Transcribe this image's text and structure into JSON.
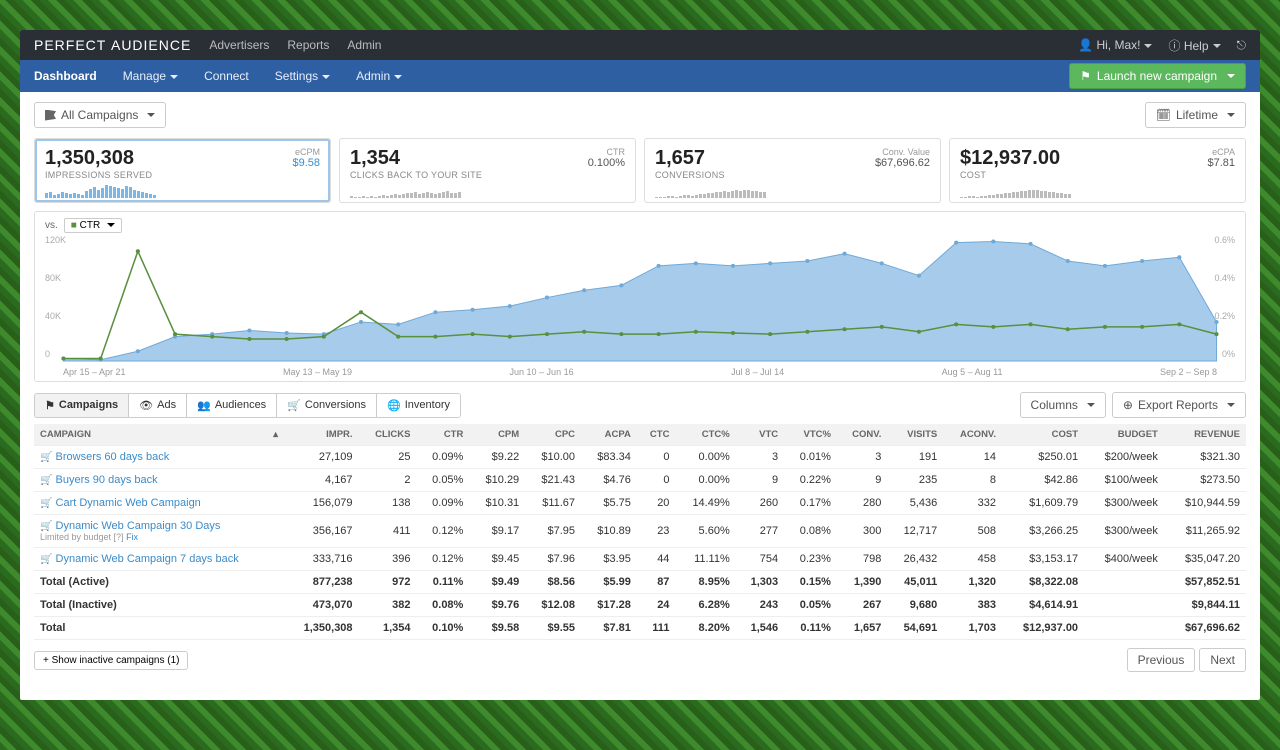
{
  "brand": {
    "a": "PERFECT",
    "b": "AUDIENCE"
  },
  "topnav": [
    "Advertisers",
    "Reports",
    "Admin"
  ],
  "user": {
    "greeting": "Hi, Max!",
    "help": "Help"
  },
  "subnav": [
    {
      "label": "Dashboard",
      "active": true
    },
    {
      "label": "Manage",
      "caret": true
    },
    {
      "label": "Connect"
    },
    {
      "label": "Settings",
      "caret": true
    },
    {
      "label": "Admin",
      "caret": true
    }
  ],
  "launch_label": "Launch new campaign",
  "filter": {
    "label": "All Campaigns"
  },
  "timerange": {
    "label": "Lifetime"
  },
  "cards": [
    {
      "big": "1,350,308",
      "sub": "IMPRESSIONS SERVED",
      "meta_label": "eCPM",
      "meta_val": "$9.58",
      "sel": true,
      "spark": [
        5,
        6,
        3,
        4,
        6,
        5,
        4,
        5,
        4,
        3,
        7,
        9,
        11,
        8,
        10,
        13,
        12,
        11,
        10,
        9,
        12,
        11,
        8,
        7,
        6,
        5,
        4,
        3
      ],
      "spark_color": "#7ab7e6"
    },
    {
      "big": "1,354",
      "sub": "CLICKS BACK TO YOUR SITE",
      "meta_label": "CTR",
      "meta_val": "0.100%",
      "plain": true,
      "spark": [
        2,
        1,
        1,
        2,
        1,
        2,
        1,
        2,
        3,
        2,
        3,
        4,
        3,
        4,
        5,
        5,
        6,
        4,
        5,
        6,
        5,
        4,
        5,
        6,
        7,
        5,
        5,
        6
      ],
      "spark_color": "#bbb"
    },
    {
      "big": "1,657",
      "sub": "CONVERSIONS",
      "meta_label": "Conv. Value",
      "meta_val": "$67,696.62",
      "plain": true,
      "spark": [
        1,
        1,
        1,
        2,
        2,
        1,
        2,
        3,
        3,
        2,
        3,
        4,
        4,
        5,
        5,
        6,
        6,
        7,
        6,
        7,
        8,
        7,
        8,
        8,
        7,
        7,
        6,
        6
      ],
      "spark_color": "#bbb"
    },
    {
      "big": "$12,937.00",
      "sub": "COST",
      "meta_label": "eCPA",
      "meta_val": "$7.81",
      "plain": true,
      "spark": [
        1,
        1,
        2,
        2,
        1,
        2,
        2,
        3,
        3,
        4,
        4,
        5,
        5,
        6,
        6,
        7,
        7,
        8,
        8,
        8,
        7,
        7,
        6,
        6,
        5,
        5,
        4,
        4
      ],
      "spark_color": "#bbb"
    }
  ],
  "vs": {
    "prefix": "vs.",
    "button": "CTR"
  },
  "chart": {
    "ylim_left": 120000,
    "yticks_left": [
      "120K",
      "80K",
      "40K",
      "0"
    ],
    "ylim_right": 0.006,
    "yticks_right": [
      "0.6%",
      "0.4%",
      "0.2%",
      "0%"
    ],
    "xlabels": [
      "Apr 15 – Apr 21",
      "May 13 – May 19",
      "Jun 10 – Jun 16",
      "Jul 8 – Jul 14",
      "Aug 5 – Aug 11",
      "Sep 2 – Sep 8"
    ],
    "area_color": "#a7cceb",
    "area_stroke": "#6fa9d8",
    "line_color": "#5a8f3e",
    "area": [
      2,
      1,
      8,
      20,
      22,
      25,
      23,
      22,
      32,
      30,
      40,
      42,
      45,
      52,
      58,
      62,
      78,
      80,
      78,
      80,
      82,
      88,
      80,
      70,
      97,
      98,
      96,
      82,
      78,
      82,
      85,
      32
    ],
    "line": [
      2,
      2,
      90,
      22,
      20,
      18,
      18,
      20,
      40,
      20,
      20,
      22,
      20,
      22,
      24,
      22,
      22,
      24,
      23,
      22,
      24,
      26,
      28,
      24,
      30,
      28,
      30,
      26,
      28,
      28,
      30,
      22
    ]
  },
  "tabs": [
    {
      "icon": "flag",
      "label": "Campaigns",
      "active": true
    },
    {
      "icon": "eye",
      "label": "Ads"
    },
    {
      "icon": "people",
      "label": "Audiences"
    },
    {
      "icon": "cart",
      "label": "Conversions"
    },
    {
      "icon": "globe",
      "label": "Inventory"
    }
  ],
  "columns_btn": "Columns",
  "export_btn": "Export Reports",
  "table": {
    "headers": [
      "CAMPAIGN",
      "IMPR.",
      "CLICKS",
      "CTR",
      "CPM",
      "CPC",
      "ACPA",
      "CTC",
      "CTC%",
      "VTC",
      "VTC%",
      "CONV.",
      "VISITS",
      "ACONV.",
      "COST",
      "BUDGET",
      "REVENUE"
    ],
    "rows": [
      {
        "name": "Browsers 60 days back",
        "c": [
          "27,109",
          "25",
          "0.09%",
          "$9.22",
          "$10.00",
          "$83.34",
          "0",
          "0.00%",
          "3",
          "0.01%",
          "3",
          "191",
          "14",
          "$250.01",
          "$200/week",
          "$321.30"
        ]
      },
      {
        "name": "Buyers 90 days back",
        "c": [
          "4,167",
          "2",
          "0.05%",
          "$10.29",
          "$21.43",
          "$4.76",
          "0",
          "0.00%",
          "9",
          "0.22%",
          "9",
          "235",
          "8",
          "$42.86",
          "$100/week",
          "$273.50"
        ]
      },
      {
        "name": "Cart Dynamic Web Campaign",
        "c": [
          "156,079",
          "138",
          "0.09%",
          "$10.31",
          "$11.67",
          "$5.75",
          "20",
          "14.49%",
          "260",
          "0.17%",
          "280",
          "5,436",
          "332",
          "$1,609.79",
          "$300/week",
          "$10,944.59"
        ]
      },
      {
        "name": "Dynamic Web Campaign 30 Days",
        "note": "Limited by budget [?] Fix",
        "c": [
          "356,167",
          "411",
          "0.12%",
          "$9.17",
          "$7.95",
          "$10.89",
          "23",
          "5.60%",
          "277",
          "0.08%",
          "300",
          "12,717",
          "508",
          "$3,266.25",
          "$300/week",
          "$11,265.92"
        ]
      },
      {
        "name": "Dynamic Web Campaign 7 days back",
        "c": [
          "333,716",
          "396",
          "0.12%",
          "$9.45",
          "$7.96",
          "$3.95",
          "44",
          "11.11%",
          "754",
          "0.23%",
          "798",
          "26,432",
          "458",
          "$3,153.17",
          "$400/week",
          "$35,047.20"
        ]
      }
    ],
    "totals": [
      {
        "label": "Total (Active)",
        "c": [
          "877,238",
          "972",
          "0.11%",
          "$9.49",
          "$8.56",
          "$5.99",
          "87",
          "8.95%",
          "1,303",
          "0.15%",
          "1,390",
          "45,011",
          "1,320",
          "$8,322.08",
          "",
          "$57,852.51"
        ]
      },
      {
        "label": "Total (Inactive)",
        "c": [
          "473,070",
          "382",
          "0.08%",
          "$9.76",
          "$12.08",
          "$17.28",
          "24",
          "6.28%",
          "243",
          "0.05%",
          "267",
          "9,680",
          "383",
          "$4,614.91",
          "",
          "$9,844.11"
        ]
      },
      {
        "label": "Total",
        "c": [
          "1,350,308",
          "1,354",
          "0.10%",
          "$9.58",
          "$9.55",
          "$7.81",
          "111",
          "8.20%",
          "1,546",
          "0.11%",
          "1,657",
          "54,691",
          "1,703",
          "$12,937.00",
          "",
          "$67,696.62"
        ]
      }
    ]
  },
  "show_inactive": "+ Show inactive campaigns (1)",
  "pager": {
    "prev": "Previous",
    "next": "Next"
  }
}
